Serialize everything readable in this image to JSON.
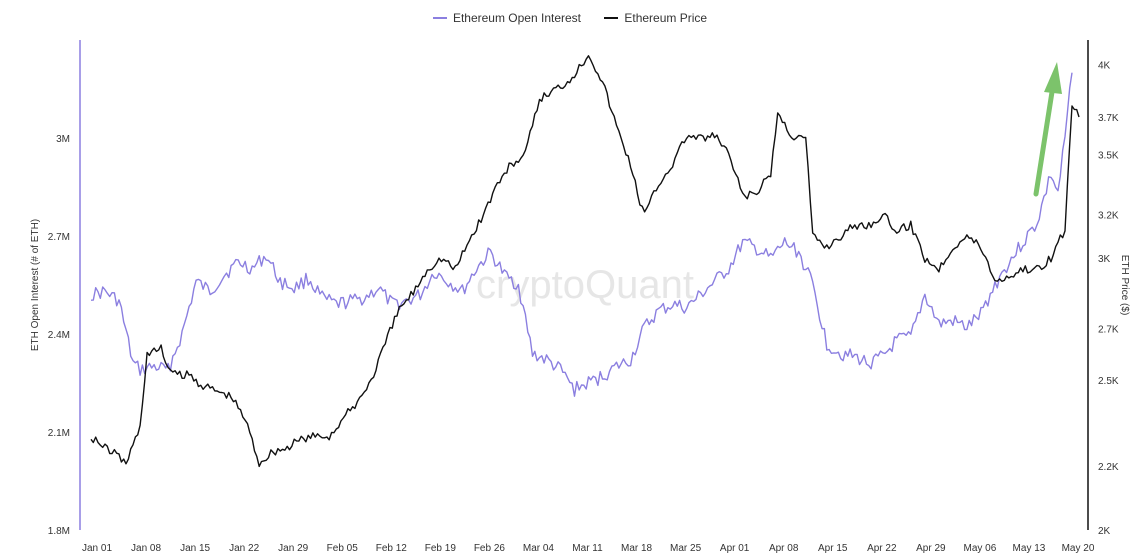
{
  "chart_data": {
    "type": "line",
    "title": "",
    "watermark": "cryptoQuant",
    "legend_position": "top-center",
    "grid": false,
    "x_range": [
      "2024-01-01",
      "2024-05-20"
    ],
    "x_tick_labels": [
      "Jan 01",
      "Jan 08",
      "Jan 15",
      "Jan 22",
      "Jan 29",
      "Feb 05",
      "Feb 12",
      "Feb 19",
      "Feb 26",
      "Mar 04",
      "Mar 11",
      "Mar 18",
      "Mar 25",
      "Apr 01",
      "Apr 08",
      "Apr 15",
      "Apr 22",
      "Apr 29",
      "May 06",
      "May 13",
      "May 20"
    ],
    "y_left": {
      "label": "ETH Open Interest (# of ETH)",
      "range": [
        1800000,
        3300000
      ],
      "ticks": [
        1800000,
        2100000,
        2400000,
        2700000,
        3000000
      ],
      "tick_labels": [
        "1.8M",
        "2.1M",
        "2.4M",
        "2.7M",
        "3M"
      ]
    },
    "y_right": {
      "label": "ETH Price ($)",
      "scale": "log",
      "range": [
        2000,
        4150
      ],
      "ticks": [
        2000,
        2200,
        2500,
        2700,
        3000,
        3200,
        3500,
        3700,
        4000
      ],
      "tick_labels": [
        "2K",
        "2.2K",
        "2.5K",
        "2.7K",
        "3K",
        "3.2K",
        "3.5K",
        "3.7K",
        "4K"
      ]
    },
    "series": [
      {
        "name": "Ethereum Open Interest",
        "axis": "left",
        "color": "#8b7fe0",
        "x": [
          "2024-01-01",
          "2024-01-03",
          "2024-01-05",
          "2024-01-07",
          "2024-01-08",
          "2024-01-10",
          "2024-01-12",
          "2024-01-14",
          "2024-01-16",
          "2024-01-18",
          "2024-01-20",
          "2024-01-22",
          "2024-01-24",
          "2024-01-26",
          "2024-01-28",
          "2024-01-30",
          "2024-02-01",
          "2024-02-03",
          "2024-02-05",
          "2024-02-07",
          "2024-02-09",
          "2024-02-11",
          "2024-02-13",
          "2024-02-15",
          "2024-02-17",
          "2024-02-19",
          "2024-02-21",
          "2024-02-23",
          "2024-02-25",
          "2024-02-27",
          "2024-02-29",
          "2024-03-02",
          "2024-03-04",
          "2024-03-06",
          "2024-03-08",
          "2024-03-10",
          "2024-03-12",
          "2024-03-14",
          "2024-03-16",
          "2024-03-18",
          "2024-03-20",
          "2024-03-22",
          "2024-03-24",
          "2024-03-26",
          "2024-03-28",
          "2024-03-30",
          "2024-04-01",
          "2024-04-03",
          "2024-04-05",
          "2024-04-07",
          "2024-04-09",
          "2024-04-11",
          "2024-04-13",
          "2024-04-15",
          "2024-04-17",
          "2024-04-19",
          "2024-04-21",
          "2024-04-23",
          "2024-04-25",
          "2024-04-27",
          "2024-04-29",
          "2024-05-01",
          "2024-05-03",
          "2024-05-05",
          "2024-05-07",
          "2024-05-09",
          "2024-05-11",
          "2024-05-13",
          "2024-05-15",
          "2024-05-17",
          "2024-05-18",
          "2024-05-19",
          "2024-05-20"
        ],
        "values": [
          2520000,
          2530000,
          2500000,
          2310000,
          2290000,
          2300000,
          2290000,
          2400000,
          2560000,
          2530000,
          2580000,
          2620000,
          2600000,
          2640000,
          2560000,
          2540000,
          2570000,
          2510000,
          2490000,
          2500000,
          2510000,
          2540000,
          2490000,
          2500000,
          2520000,
          2590000,
          2560000,
          2530000,
          2600000,
          2650000,
          2580000,
          2550000,
          2340000,
          2320000,
          2290000,
          2230000,
          2250000,
          2270000,
          2300000,
          2320000,
          2420000,
          2470000,
          2490000,
          2480000,
          2520000,
          2560000,
          2600000,
          2680000,
          2660000,
          2630000,
          2680000,
          2650000,
          2550000,
          2370000,
          2340000,
          2330000,
          2310000,
          2330000,
          2380000,
          2390000,
          2520000,
          2430000,
          2440000,
          2420000,
          2460000,
          2550000,
          2620000,
          2680000,
          2740000,
          2890000,
          2830000,
          3000000,
          3200000
        ]
      },
      {
        "name": "Ethereum Price",
        "axis": "right",
        "color": "#111111",
        "x": [
          "2024-01-01",
          "2024-01-03",
          "2024-01-04",
          "2024-01-06",
          "2024-01-08",
          "2024-01-09",
          "2024-01-11",
          "2024-01-12",
          "2024-01-13",
          "2024-01-15",
          "2024-01-17",
          "2024-01-19",
          "2024-01-21",
          "2024-01-23",
          "2024-01-25",
          "2024-01-27",
          "2024-01-29",
          "2024-01-31",
          "2024-02-02",
          "2024-02-04",
          "2024-02-06",
          "2024-02-08",
          "2024-02-10",
          "2024-02-12",
          "2024-02-14",
          "2024-02-16",
          "2024-02-18",
          "2024-02-20",
          "2024-02-22",
          "2024-02-24",
          "2024-02-26",
          "2024-02-28",
          "2024-03-01",
          "2024-03-03",
          "2024-03-05",
          "2024-03-07",
          "2024-03-09",
          "2024-03-11",
          "2024-03-12",
          "2024-03-14",
          "2024-03-16",
          "2024-03-18",
          "2024-03-19",
          "2024-03-20",
          "2024-03-22",
          "2024-03-24",
          "2024-03-26",
          "2024-03-28",
          "2024-03-30",
          "2024-04-01",
          "2024-04-03",
          "2024-04-05",
          "2024-04-07",
          "2024-04-08",
          "2024-04-10",
          "2024-04-12",
          "2024-04-13",
          "2024-04-15",
          "2024-04-17",
          "2024-04-19",
          "2024-04-21",
          "2024-04-23",
          "2024-04-25",
          "2024-04-27",
          "2024-04-29",
          "2024-05-01",
          "2024-05-03",
          "2024-05-05",
          "2024-05-07",
          "2024-05-09",
          "2024-05-11",
          "2024-05-13",
          "2024-05-15",
          "2024-05-17",
          "2024-05-19",
          "2024-05-20",
          "2024-05-21"
        ],
        "values": [
          2300,
          2260,
          2250,
          2210,
          2330,
          2600,
          2620,
          2550,
          2520,
          2520,
          2480,
          2460,
          2440,
          2360,
          2210,
          2250,
          2260,
          2290,
          2300,
          2300,
          2360,
          2420,
          2500,
          2640,
          2780,
          2850,
          2950,
          3000,
          2950,
          3080,
          3200,
          3350,
          3450,
          3500,
          3800,
          3850,
          3900,
          4000,
          4070,
          3900,
          3650,
          3450,
          3300,
          3200,
          3350,
          3450,
          3600,
          3580,
          3600,
          3500,
          3290,
          3300,
          3400,
          3720,
          3600,
          3580,
          3100,
          3050,
          3100,
          3150,
          3150,
          3200,
          3120,
          3150,
          3000,
          2950,
          3050,
          3100,
          3050,
          2900,
          2920,
          2950,
          2950,
          3000,
          3130,
          3750,
          3700
        ]
      }
    ]
  },
  "legend": {
    "items": [
      {
        "label": "Ethereum Open Interest",
        "color": "#8b7fe0"
      },
      {
        "label": "Ethereum Price",
        "color": "#111111"
      }
    ]
  },
  "annotation": {
    "type": "up-arrow",
    "color": "#7cc36b"
  }
}
